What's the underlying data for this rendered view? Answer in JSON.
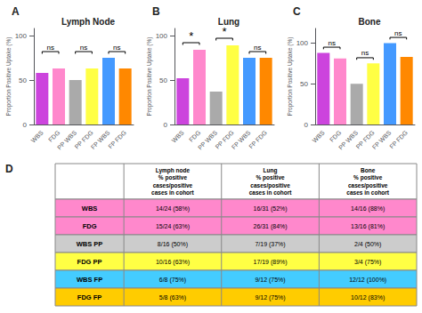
{
  "chart_data": [
    {
      "type": "bar",
      "label": "A",
      "title": "Lymph Node",
      "ylabel": "Proportion Positive Uptake (%)",
      "categories": [
        "WBS",
        "FDG",
        "PP WBS",
        "PP FDG",
        "FP WBS",
        "FP FDG"
      ],
      "values": [
        58,
        63,
        50,
        63,
        75,
        63
      ],
      "colors": [
        "#CC44DD",
        "#FF88CC",
        "#AAAAAA",
        "#FFFF44",
        "#4499FF",
        "#FF8800"
      ],
      "ylim": [
        0,
        108
      ],
      "yticks": [
        0,
        50,
        100
      ],
      "annotations": [
        {
          "from": "WBS",
          "to": "FDG",
          "y": 82,
          "text": "ns"
        },
        {
          "from": "PP WBS",
          "to": "PP FDG",
          "y": 82,
          "text": "ns"
        },
        {
          "from": "FP WBS",
          "to": "FP FDG",
          "y": 82,
          "text": "ns"
        }
      ]
    },
    {
      "type": "bar",
      "label": "B",
      "title": "Lung",
      "ylabel": "Proportion Positive Uptake (%)",
      "categories": [
        "WBS",
        "FDG",
        "PP WBS",
        "PP FDG",
        "FP WBS",
        "FP FDG"
      ],
      "values": [
        52,
        84,
        37,
        89,
        75,
        75
      ],
      "colors": [
        "#CC44DD",
        "#FF88CC",
        "#AAAAAA",
        "#FFFF44",
        "#4499FF",
        "#FF8800"
      ],
      "ylim": [
        0,
        108
      ],
      "yticks": [
        0,
        50,
        100
      ],
      "annotations": [
        {
          "from": "WBS",
          "to": "FDG",
          "y": 92,
          "text": "*"
        },
        {
          "from": "PP WBS",
          "to": "PP FDG",
          "y": 97,
          "text": "*"
        },
        {
          "from": "FP WBS",
          "to": "FP FDG",
          "y": 82,
          "text": "ns"
        }
      ]
    },
    {
      "type": "bar",
      "label": "C",
      "title": "Bone",
      "ylabel": "Proportion Positive Uptake (%)",
      "categories": [
        "WBS",
        "FDG",
        "PP WBS",
        "PP FDG",
        "FP WBS",
        "FP FDG"
      ],
      "values": [
        88,
        81,
        50,
        75,
        100,
        83
      ],
      "colors": [
        "#CC44DD",
        "#FF88CC",
        "#AAAAAA",
        "#FFFF44",
        "#4499FF",
        "#FF8800"
      ],
      "ylim": [
        0,
        118
      ],
      "yticks": [
        0,
        50,
        100
      ],
      "annotations": [
        {
          "from": "WBS",
          "to": "FDG",
          "y": 95,
          "text": "ns"
        },
        {
          "from": "PP WBS",
          "to": "PP FDG",
          "y": 82,
          "text": "ns"
        },
        {
          "from": "FP WBS",
          "to": "FP FDG",
          "y": 107,
          "text": "ns"
        }
      ]
    },
    {
      "type": "table",
      "label": "D",
      "col_headers": [
        "Lymph node\n% positive\ncases/positive\ncases in cohort",
        "Lung\n% positive\ncases/positive\ncases in cohort",
        "Bone\n% positive\ncases/positive\ncases in cohort"
      ],
      "row_labels": [
        "WBS",
        "FDG",
        "WBS PP",
        "FDG PP",
        "WBS FP",
        "FDG FP"
      ],
      "row_colors": [
        "#FF88CC",
        "#FF88CC",
        "#CCCCCC",
        "#FFFF44",
        "#44CCFF",
        "#FFCC00"
      ],
      "cells": [
        [
          "14/24 (58%)",
          "16/31 (52%)",
          "14/16 (88%)"
        ],
        [
          "15/24 (63%)",
          "26/31 (84%)",
          "13/16 (81%)"
        ],
        [
          "8/16 (50%)",
          "7/19 (37%)",
          "2/4 (50%)"
        ],
        [
          "10/16 (63%)",
          "17/19 (89%)",
          "3/4 (75%)"
        ],
        [
          "6/8 (75%)",
          "9/12 (75%)",
          "12/12 (100%)"
        ],
        [
          "5/8 (63%)",
          "9/12 (75%)",
          "10/12 (83%)"
        ]
      ]
    }
  ]
}
